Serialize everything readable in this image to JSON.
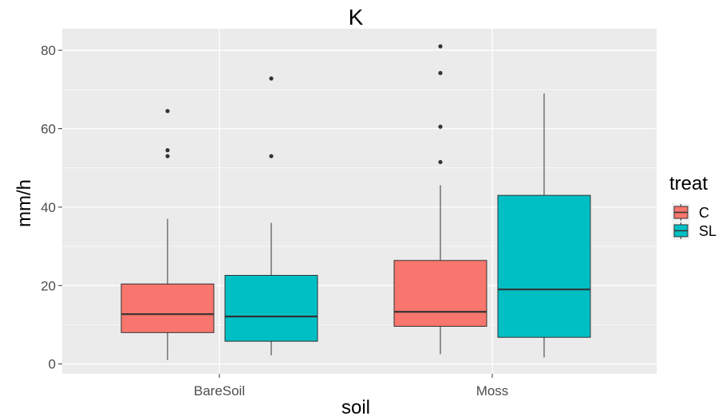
{
  "chart_data": {
    "type": "box",
    "title": "K",
    "xlabel": "soil",
    "ylabel": "mm/h",
    "ylim": [
      -2.5,
      85.5
    ],
    "yticks": [
      0,
      20,
      40,
      60,
      80
    ],
    "categories": [
      "BareSoil",
      "Moss"
    ],
    "grid": true,
    "legend_position": "right",
    "legend": {
      "title": "treat",
      "items": [
        {
          "label": "C",
          "color": "#F8766D"
        },
        {
          "label": "SL",
          "color": "#00BFC4"
        }
      ]
    },
    "series": [
      {
        "name": "C",
        "color": "#F8766D",
        "boxes": [
          {
            "category": "BareSoil",
            "whisker_low": 1.0,
            "q1": 8.0,
            "median": 12.7,
            "q3": 20.4,
            "whisker_high": 37.0,
            "outliers": [
              64.5,
              54.5,
              53.0
            ]
          },
          {
            "category": "Moss",
            "whisker_low": 2.5,
            "q1": 9.6,
            "median": 13.3,
            "q3": 26.4,
            "whisker_high": 45.6,
            "outliers": [
              81.0,
              74.2,
              60.5,
              51.5
            ]
          }
        ]
      },
      {
        "name": "SL",
        "color": "#00BFC4",
        "boxes": [
          {
            "category": "BareSoil",
            "whisker_low": 2.2,
            "q1": 5.8,
            "median": 12.1,
            "q3": 22.6,
            "whisker_high": 36.0,
            "outliers": [
              72.8,
              53.0
            ]
          },
          {
            "category": "Moss",
            "whisker_low": 1.7,
            "q1": 6.8,
            "median": 19.0,
            "q3": 43.0,
            "whisker_high": 69.0,
            "outliers": []
          }
        ]
      }
    ]
  }
}
